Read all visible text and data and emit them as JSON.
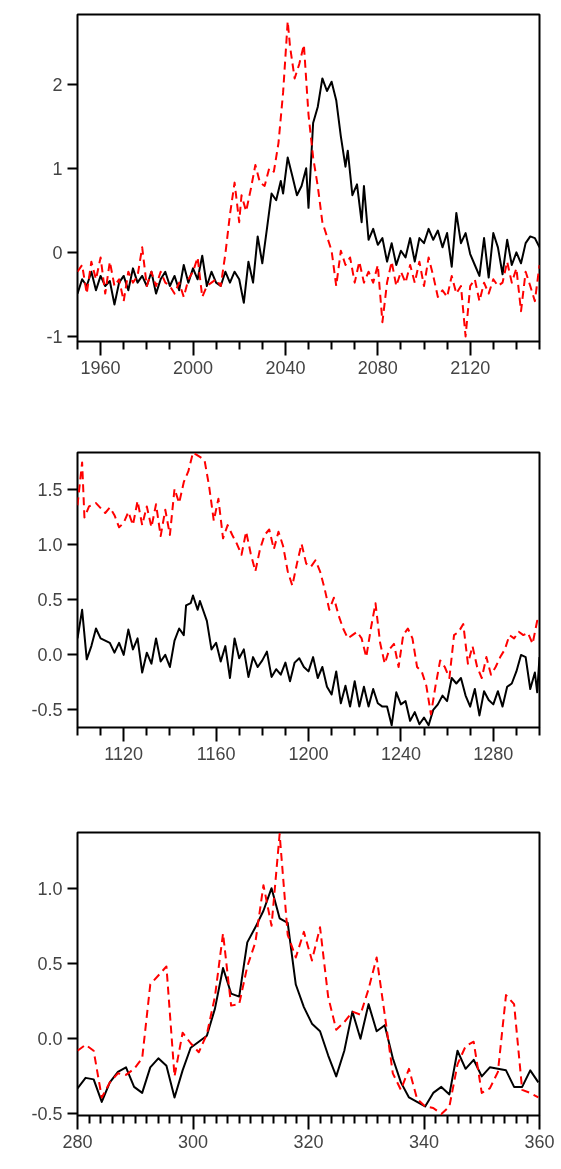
{
  "chart_data": [
    {
      "type": "line",
      "xlim": [
        1950,
        2150
      ],
      "ylim": [
        -1.06,
        2.83
      ],
      "xticks": [
        {
          "value": 1950,
          "label": null
        },
        {
          "value": 1960,
          "label": "1960"
        },
        {
          "value": 1970,
          "label": null
        },
        {
          "value": 1980,
          "label": null
        },
        {
          "value": 1990,
          "label": null
        },
        {
          "value": 2000,
          "label": "2000"
        },
        {
          "value": 2010,
          "label": null
        },
        {
          "value": 2020,
          "label": null
        },
        {
          "value": 2030,
          "label": null
        },
        {
          "value": 2040,
          "label": "2040"
        },
        {
          "value": 2050,
          "label": null
        },
        {
          "value": 2060,
          "label": null
        },
        {
          "value": 2070,
          "label": null
        },
        {
          "value": 2080,
          "label": "2080"
        },
        {
          "value": 2090,
          "label": null
        },
        {
          "value": 2100,
          "label": null
        },
        {
          "value": 2110,
          "label": null
        },
        {
          "value": 2120,
          "label": "2120"
        },
        {
          "value": 2130,
          "label": null
        },
        {
          "value": 2140,
          "label": null
        },
        {
          "value": 2150,
          "label": null
        }
      ],
      "yticks": [
        -1,
        0,
        1,
        2
      ],
      "series": [
        {
          "color": "#000000",
          "line_style": "solid",
          "x": [
            1950,
            1952,
            1954,
            1956,
            1958,
            1960,
            1962,
            1964,
            1966,
            1968,
            1970,
            1972,
            1974,
            1976,
            1978,
            1980,
            1982,
            1984,
            1986,
            1988,
            1990,
            1992,
            1994,
            1996,
            1998,
            2000,
            2002,
            2004,
            2006,
            2008,
            2010,
            2012,
            2014,
            2016,
            2018,
            2020,
            2022,
            2024,
            2026,
            2028,
            2030,
            2032,
            2034,
            2036,
            2038,
            2039,
            2041,
            2043,
            2045,
            2047,
            2049,
            2050,
            2052,
            2054,
            2056,
            2058,
            2060,
            2062,
            2064,
            2066,
            2067,
            2069,
            2071,
            2073,
            2074,
            2076,
            2078,
            2080,
            2082,
            2084,
            2086,
            2088,
            2090,
            2092,
            2094,
            2096,
            2098,
            2100,
            2102,
            2104,
            2106,
            2108,
            2110,
            2112,
            2114,
            2116,
            2118,
            2120,
            2122,
            2124,
            2126,
            2128,
            2130,
            2132,
            2134,
            2136,
            2138,
            2140,
            2142,
            2144,
            2146,
            2148,
            2150
          ],
          "values": [
            -0.49,
            -0.32,
            -0.4,
            -0.23,
            -0.45,
            -0.28,
            -0.4,
            -0.34,
            -0.62,
            -0.36,
            -0.28,
            -0.45,
            -0.19,
            -0.36,
            -0.28,
            -0.4,
            -0.23,
            -0.49,
            -0.32,
            -0.23,
            -0.4,
            -0.28,
            -0.45,
            -0.15,
            -0.36,
            -0.19,
            -0.32,
            -0.04,
            -0.4,
            -0.23,
            -0.36,
            -0.4,
            -0.23,
            -0.36,
            -0.23,
            -0.32,
            -0.6,
            -0.11,
            -0.36,
            0.19,
            -0.13,
            0.28,
            0.7,
            0.62,
            0.85,
            0.7,
            1.13,
            0.91,
            0.68,
            0.79,
            1.0,
            0.53,
            1.54,
            1.73,
            2.07,
            1.92,
            2.03,
            1.81,
            1.38,
            1.02,
            1.21,
            0.68,
            0.81,
            0.36,
            0.79,
            0.15,
            0.28,
            0.09,
            0.17,
            -0.11,
            0.11,
            -0.15,
            0.02,
            -0.06,
            0.17,
            -0.11,
            0.17,
            0.11,
            0.28,
            0.15,
            0.26,
            0.06,
            0.23,
            -0.17,
            0.47,
            0.11,
            0.23,
            -0.02,
            -0.15,
            -0.28,
            0.17,
            -0.3,
            0.23,
            0.06,
            -0.26,
            0.15,
            -0.15,
            0.0,
            -0.13,
            0.11,
            0.19,
            0.17,
            0.06
          ]
        },
        {
          "color": "#ff0000",
          "line_style": "dashed",
          "x": [
            1950,
            1952,
            1954,
            1956,
            1958,
            1960,
            1962,
            1964,
            1966,
            1968,
            1970,
            1972,
            1974,
            1976,
            1978,
            1980,
            1982,
            1984,
            1986,
            1988,
            1990,
            1992,
            1994,
            1996,
            1998,
            2000,
            2002,
            2004,
            2006,
            2008,
            2010,
            2012,
            2014,
            2016,
            2018,
            2020,
            2021,
            2023,
            2025,
            2027,
            2029,
            2031,
            2033,
            2035,
            2037,
            2039,
            2041,
            2042,
            2044,
            2046,
            2048,
            2050,
            2052,
            2054,
            2056,
            2058,
            2060,
            2062,
            2064,
            2066,
            2068,
            2070,
            2072,
            2074,
            2076,
            2078,
            2080,
            2082,
            2084,
            2086,
            2088,
            2090,
            2092,
            2094,
            2096,
            2098,
            2100,
            2102,
            2104,
            2106,
            2108,
            2110,
            2112,
            2114,
            2116,
            2118,
            2120,
            2122,
            2124,
            2126,
            2128,
            2130,
            2132,
            2134,
            2136,
            2138,
            2140,
            2142,
            2144,
            2146,
            2148,
            2150
          ],
          "values": [
            -0.23,
            -0.15,
            -0.49,
            -0.11,
            -0.32,
            -0.06,
            -0.49,
            -0.11,
            -0.4,
            -0.32,
            -0.58,
            -0.23,
            -0.36,
            -0.28,
            0.06,
            -0.4,
            -0.23,
            -0.4,
            -0.23,
            -0.36,
            -0.4,
            -0.49,
            -0.36,
            -0.53,
            -0.32,
            -0.23,
            -0.06,
            -0.53,
            -0.4,
            -0.36,
            -0.32,
            -0.4,
            -0.02,
            0.45,
            0.83,
            0.36,
            0.68,
            0.49,
            0.75,
            1.04,
            0.83,
            0.79,
            1.0,
            0.96,
            1.3,
            1.9,
            2.75,
            2.45,
            2.07,
            2.24,
            2.47,
            1.64,
            1.13,
            0.79,
            0.36,
            0.19,
            0.02,
            -0.4,
            0.02,
            -0.15,
            -0.06,
            -0.36,
            -0.11,
            -0.36,
            -0.23,
            -0.36,
            -0.15,
            -0.83,
            -0.36,
            -0.11,
            -0.4,
            -0.23,
            -0.36,
            -0.15,
            -0.36,
            -0.11,
            -0.4,
            -0.06,
            -0.28,
            -0.53,
            -0.45,
            -0.53,
            -0.28,
            -0.49,
            -0.4,
            -1.0,
            -0.4,
            -0.32,
            -0.58,
            -0.36,
            -0.49,
            -0.32,
            -0.4,
            -0.36,
            -0.11,
            -0.36,
            -0.19,
            -0.7,
            -0.23,
            -0.4,
            -0.58,
            -0.15
          ]
        }
      ]
    },
    {
      "type": "line",
      "xlim": [
        1100,
        1300
      ],
      "ylim": [
        -0.66,
        1.84
      ],
      "xticks": [
        {
          "value": 1100,
          "label": null
        },
        {
          "value": 1110,
          "label": null
        },
        {
          "value": 1120,
          "label": "1120"
        },
        {
          "value": 1130,
          "label": null
        },
        {
          "value": 1140,
          "label": null
        },
        {
          "value": 1150,
          "label": null
        },
        {
          "value": 1160,
          "label": "1160"
        },
        {
          "value": 1170,
          "label": null
        },
        {
          "value": 1180,
          "label": null
        },
        {
          "value": 1190,
          "label": null
        },
        {
          "value": 1200,
          "label": "1200"
        },
        {
          "value": 1210,
          "label": null
        },
        {
          "value": 1220,
          "label": null
        },
        {
          "value": 1230,
          "label": null
        },
        {
          "value": 1240,
          "label": "1240"
        },
        {
          "value": 1250,
          "label": null
        },
        {
          "value": 1260,
          "label": null
        },
        {
          "value": 1270,
          "label": null
        },
        {
          "value": 1280,
          "label": "1280"
        },
        {
          "value": 1290,
          "label": null
        },
        {
          "value": 1300,
          "label": null
        }
      ],
      "yticks": [
        {
          "value": -0.5,
          "label": "-0.5"
        },
        {
          "value": 0,
          "label": "0.0"
        },
        {
          "value": 0.5,
          "label": "0.5"
        },
        {
          "value": 1,
          "label": "1.0"
        },
        {
          "value": 1.5,
          "label": "1.5"
        }
      ],
      "series": [
        {
          "color": "#000000",
          "line_style": "solid",
          "x": [
            1100,
            1102,
            1104,
            1106,
            1108,
            1110,
            1114,
            1116,
            1118,
            1120,
            1122,
            1124,
            1126,
            1128,
            1130,
            1132,
            1134,
            1136,
            1138,
            1140,
            1142,
            1144,
            1146,
            1147,
            1149,
            1150,
            1152,
            1153,
            1156,
            1158,
            1160,
            1162,
            1164,
            1166,
            1168,
            1170,
            1172,
            1174,
            1176,
            1178,
            1180,
            1182,
            1184,
            1186,
            1188,
            1190,
            1192,
            1194,
            1196,
            1198,
            1200,
            1202,
            1204,
            1206,
            1208,
            1210,
            1212,
            1214,
            1216,
            1218,
            1220,
            1222,
            1224,
            1226,
            1228,
            1230,
            1232,
            1234,
            1236,
            1238,
            1240,
            1242,
            1244,
            1246,
            1248,
            1250,
            1252,
            1254,
            1256,
            1258,
            1260,
            1262,
            1264,
            1266,
            1268,
            1270,
            1272,
            1274,
            1276,
            1278,
            1280,
            1282,
            1284,
            1286,
            1288,
            1290,
            1292,
            1294,
            1296,
            1298,
            1299,
            1300
          ],
          "values": [
            0.15,
            0.41,
            -0.04,
            0.08,
            0.24,
            0.15,
            0.11,
            0.02,
            0.11,
            0.0,
            0.23,
            0.05,
            0.15,
            -0.16,
            0.02,
            -0.08,
            0.15,
            -0.06,
            0.0,
            -0.11,
            0.13,
            0.24,
            0.18,
            0.45,
            0.47,
            0.54,
            0.41,
            0.49,
            0.31,
            0.05,
            0.11,
            -0.06,
            0.08,
            -0.21,
            0.15,
            -0.03,
            0.05,
            -0.2,
            -0.02,
            -0.11,
            -0.05,
            0.03,
            -0.2,
            -0.13,
            -0.18,
            -0.07,
            -0.24,
            -0.07,
            -0.03,
            -0.11,
            -0.15,
            -0.02,
            -0.21,
            -0.11,
            -0.29,
            -0.36,
            -0.15,
            -0.44,
            -0.28,
            -0.47,
            -0.24,
            -0.47,
            -0.29,
            -0.47,
            -0.31,
            -0.44,
            -0.47,
            -0.47,
            -0.64,
            -0.34,
            -0.45,
            -0.42,
            -0.6,
            -0.52,
            -0.63,
            -0.57,
            -0.64,
            -0.5,
            -0.45,
            -0.37,
            -0.42,
            -0.21,
            -0.26,
            -0.21,
            -0.37,
            -0.47,
            -0.31,
            -0.55,
            -0.33,
            -0.41,
            -0.45,
            -0.33,
            -0.47,
            -0.29,
            -0.26,
            -0.15,
            0.0,
            -0.02,
            -0.31,
            -0.16,
            -0.34,
            -0.02
          ]
        },
        {
          "color": "#ff0000",
          "line_style": "dashed",
          "x": [
            1100,
            1102,
            1103,
            1105,
            1108,
            1112,
            1114,
            1116,
            1118,
            1120,
            1122,
            1124,
            1126,
            1128,
            1130,
            1132,
            1134,
            1136,
            1138,
            1140,
            1142,
            1144,
            1146,
            1148,
            1150,
            1153,
            1155,
            1157,
            1159,
            1161,
            1163,
            1165,
            1167,
            1169,
            1171,
            1173,
            1175,
            1177,
            1179,
            1181,
            1183,
            1185,
            1187,
            1189,
            1191,
            1193,
            1195,
            1197,
            1199,
            1201,
            1203,
            1205,
            1207,
            1209,
            1211,
            1213,
            1215,
            1217,
            1219,
            1221,
            1223,
            1225,
            1227,
            1229,
            1231,
            1233,
            1235,
            1237,
            1239,
            1241,
            1243,
            1245,
            1247,
            1249,
            1251,
            1253,
            1255,
            1257,
            1259,
            1261,
            1263,
            1265,
            1267,
            1269,
            1271,
            1273,
            1275,
            1277,
            1279,
            1281,
            1283,
            1285,
            1287,
            1289,
            1291,
            1293,
            1295,
            1297,
            1299,
            1300
          ],
          "values": [
            1.36,
            1.75,
            1.25,
            1.35,
            1.38,
            1.29,
            1.34,
            1.27,
            1.16,
            1.2,
            1.3,
            1.18,
            1.4,
            1.18,
            1.35,
            1.16,
            1.37,
            1.08,
            1.32,
            1.09,
            1.51,
            1.38,
            1.57,
            1.67,
            1.84,
            1.8,
            1.77,
            1.53,
            1.22,
            1.42,
            1.06,
            1.18,
            1.09,
            1.01,
            0.91,
            1.12,
            0.92,
            0.76,
            0.96,
            1.09,
            1.14,
            0.96,
            1.12,
            0.99,
            0.76,
            0.63,
            0.83,
            1.01,
            0.83,
            0.8,
            0.86,
            0.76,
            0.6,
            0.41,
            0.52,
            0.36,
            0.24,
            0.15,
            0.18,
            0.21,
            0.15,
            -0.02,
            0.24,
            0.47,
            0.11,
            -0.08,
            0.05,
            0.1,
            -0.11,
            0.18,
            0.24,
            0.15,
            -0.11,
            -0.15,
            -0.28,
            -0.54,
            -0.28,
            -0.05,
            -0.11,
            -0.21,
            0.18,
            0.21,
            0.28,
            -0.08,
            0.08,
            -0.11,
            -0.21,
            -0.02,
            -0.18,
            -0.11,
            -0.02,
            0.05,
            0.18,
            0.15,
            0.21,
            0.18,
            0.2,
            0.1,
            0.31,
            0.26
          ]
        }
      ]
    },
    {
      "type": "line",
      "xlim": [
        280,
        360
      ],
      "ylim": [
        -0.51,
        1.37
      ],
      "xticks": [
        {
          "value": 280,
          "label": "280"
        },
        {
          "value": 282,
          "label": null
        },
        {
          "value": 284,
          "label": null
        },
        {
          "value": 286,
          "label": null
        },
        {
          "value": 288,
          "label": null
        },
        {
          "value": 290,
          "label": null
        },
        {
          "value": 292,
          "label": null
        },
        {
          "value": 294,
          "label": null
        },
        {
          "value": 296,
          "label": null
        },
        {
          "value": 298,
          "label": null
        },
        {
          "value": 300,
          "label": "300"
        },
        {
          "value": 302,
          "label": null
        },
        {
          "value": 304,
          "label": null
        },
        {
          "value": 306,
          "label": null
        },
        {
          "value": 308,
          "label": null
        },
        {
          "value": 310,
          "label": null
        },
        {
          "value": 312,
          "label": null
        },
        {
          "value": 314,
          "label": null
        },
        {
          "value": 316,
          "label": null
        },
        {
          "value": 318,
          "label": null
        },
        {
          "value": 320,
          "label": "320"
        },
        {
          "value": 322,
          "label": null
        },
        {
          "value": 324,
          "label": null
        },
        {
          "value": 326,
          "label": null
        },
        {
          "value": 328,
          "label": null
        },
        {
          "value": 330,
          "label": null
        },
        {
          "value": 332,
          "label": null
        },
        {
          "value": 334,
          "label": null
        },
        {
          "value": 336,
          "label": null
        },
        {
          "value": 338,
          "label": null
        },
        {
          "value": 340,
          "label": "340"
        },
        {
          "value": 342,
          "label": null
        },
        {
          "value": 344,
          "label": null
        },
        {
          "value": 346,
          "label": null
        },
        {
          "value": 348,
          "label": null
        },
        {
          "value": 350,
          "label": null
        },
        {
          "value": 352,
          "label": null
        },
        {
          "value": 354,
          "label": null
        },
        {
          "value": 356,
          "label": null
        },
        {
          "value": 358,
          "label": null
        },
        {
          "value": 360,
          "label": "360"
        }
      ],
      "yticks": [
        {
          "value": -0.5,
          "label": "-0.5"
        },
        {
          "value": 0,
          "label": "0.0"
        },
        {
          "value": 0.5,
          "label": "0.5"
        },
        {
          "value": 1,
          "label": "1.0"
        }
      ],
      "series": [
        {
          "color": "#000000",
          "line_style": "solid",
          "x": [
            280.0,
            281.4,
            282.8,
            284.2,
            285.6,
            287.0,
            288.4,
            289.8,
            291.2,
            292.6,
            294.0,
            295.4,
            296.8,
            298.2,
            299.6,
            301.0,
            302.4,
            303.8,
            305.2,
            306.6,
            308.0,
            309.4,
            310.8,
            312.2,
            313.6,
            315.0,
            316.4,
            317.8,
            319.2,
            320.6,
            322.0,
            323.4,
            324.8,
            326.2,
            327.6,
            329.0,
            330.4,
            331.8,
            333.2,
            334.6,
            336.0,
            337.4,
            338.8,
            340.2,
            341.6,
            343.0,
            344.4,
            345.8,
            347.2,
            348.6,
            350.0,
            351.4,
            352.8,
            354.2,
            355.6,
            357.0,
            358.4,
            359.8
          ],
          "values": [
            -0.33,
            -0.26,
            -0.27,
            -0.42,
            -0.29,
            -0.22,
            -0.19,
            -0.32,
            -0.36,
            -0.19,
            -0.13,
            -0.18,
            -0.39,
            -0.21,
            -0.06,
            -0.02,
            0.02,
            0.2,
            0.47,
            0.3,
            0.28,
            0.64,
            0.74,
            0.85,
            1.0,
            0.8,
            0.77,
            0.36,
            0.21,
            0.1,
            0.05,
            -0.11,
            -0.25,
            -0.08,
            0.18,
            0.0,
            0.23,
            0.05,
            0.09,
            -0.13,
            -0.29,
            -0.39,
            -0.42,
            -0.45,
            -0.36,
            -0.32,
            -0.37,
            -0.08,
            -0.2,
            -0.14,
            -0.25,
            -0.19,
            -0.2,
            -0.21,
            -0.32,
            -0.32,
            -0.21,
            -0.29
          ]
        },
        {
          "color": "#ff0000",
          "line_style": "dashed",
          "x": [
            280.0,
            281.4,
            282.8,
            284.2,
            285.6,
            287.0,
            288.4,
            289.8,
            291.2,
            292.6,
            294.0,
            295.4,
            296.8,
            298.2,
            299.6,
            301.0,
            302.4,
            303.8,
            305.2,
            306.6,
            308.0,
            309.4,
            310.8,
            312.2,
            313.6,
            315.0,
            316.4,
            317.8,
            319.2,
            320.6,
            322.0,
            323.4,
            324.8,
            326.2,
            327.6,
            329.0,
            330.4,
            331.8,
            333.2,
            334.6,
            336.0,
            337.4,
            338.8,
            340.2,
            341.6,
            343.0,
            344.4,
            345.8,
            347.2,
            348.6,
            350.0,
            351.4,
            352.8,
            354.2,
            355.6,
            357.0,
            358.4,
            359.8
          ],
          "values": [
            -0.08,
            -0.04,
            -0.08,
            -0.39,
            -0.29,
            -0.23,
            -0.24,
            -0.2,
            -0.13,
            0.36,
            0.42,
            0.48,
            -0.25,
            0.04,
            -0.03,
            -0.09,
            0.03,
            0.28,
            0.7,
            0.22,
            0.23,
            0.48,
            0.64,
            1.02,
            0.75,
            1.36,
            0.69,
            0.54,
            0.71,
            0.52,
            0.74,
            0.28,
            0.06,
            0.11,
            0.18,
            0.16,
            0.33,
            0.54,
            0.16,
            -0.23,
            -0.34,
            -0.2,
            -0.4,
            -0.45,
            -0.46,
            -0.5,
            -0.45,
            -0.17,
            -0.05,
            -0.02,
            -0.36,
            -0.33,
            -0.22,
            0.29,
            0.23,
            -0.34,
            -0.36,
            -0.39
          ]
        }
      ]
    }
  ]
}
